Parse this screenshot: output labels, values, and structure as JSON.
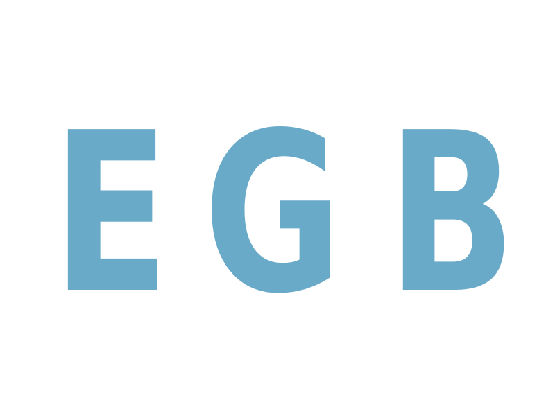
{
  "logo": {
    "letters": [
      "E",
      "G",
      "B"
    ],
    "color": "#6aaac9"
  },
  "background": "#ffffff"
}
